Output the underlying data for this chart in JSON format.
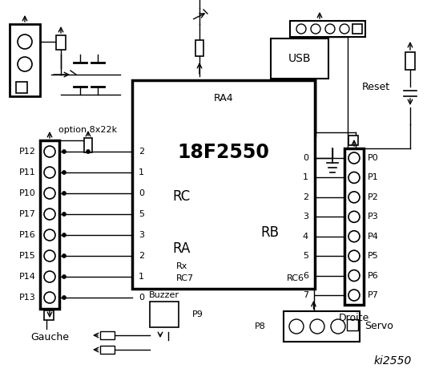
{
  "bg_color": "#ffffff",
  "chip_label": "18F2550",
  "chip_label2": "RA4",
  "rc_label": "RC",
  "ra_label": "RA",
  "rb_label": "RB",
  "rx_label": "Rx",
  "rc7_label": "RC7",
  "rc6_label": "RC6",
  "usb_label": "USB",
  "reset_label": "Reset",
  "gauche_label": "Gauche",
  "droite_label": "Droite",
  "option_label": "option 8x22k",
  "buzzer_label": "Buzzer",
  "servo_label": "Servo",
  "ki_label": "ki2550",
  "p9_label": "P9",
  "p8_label": "P8",
  "left_pins": [
    "P12",
    "P11",
    "P10",
    "P17",
    "P16",
    "P15",
    "P14",
    "P13"
  ],
  "right_pins": [
    "P0",
    "P1",
    "P2",
    "P3",
    "P4",
    "P5",
    "P6",
    "P7"
  ],
  "rc_pins": [
    "2",
    "1",
    "0"
  ],
  "ra_pins": [
    "5",
    "3",
    "2",
    "1",
    "0"
  ],
  "rb_pins": [
    "0",
    "1",
    "2",
    "3",
    "4",
    "5",
    "6",
    "7"
  ]
}
